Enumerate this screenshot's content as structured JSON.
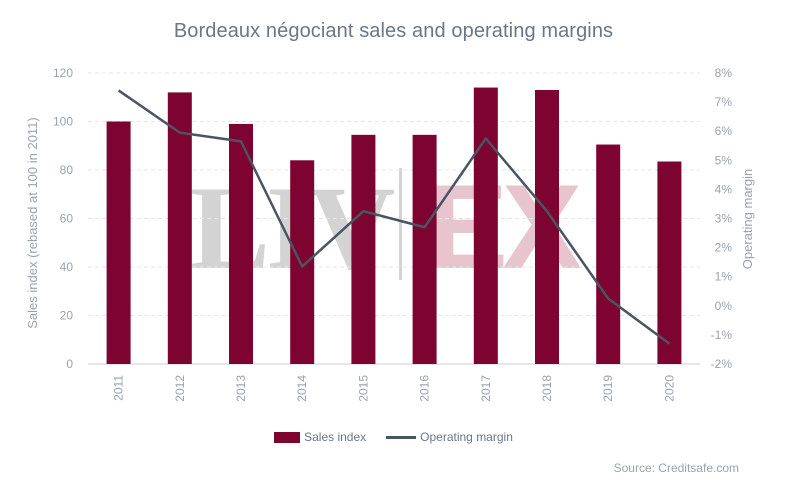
{
  "chart_data": {
    "type": "bar+line",
    "title": "Bordeaux négociant sales and operating margins",
    "categories": [
      "2011",
      "2012",
      "2013",
      "2014",
      "2015",
      "2016",
      "2017",
      "2018",
      "2019",
      "2020"
    ],
    "series": [
      {
        "name": "Sales index",
        "type": "bar",
        "axis": "left",
        "color": "#7d0330",
        "values": [
          100,
          112,
          99,
          84,
          94.5,
          94.5,
          114,
          113,
          90.5,
          83.5
        ]
      },
      {
        "name": "Operating margin",
        "type": "line",
        "axis": "right",
        "color": "#4a5561",
        "values": [
          7.4,
          5.95,
          5.65,
          1.35,
          3.25,
          2.7,
          5.75,
          3.25,
          0.25,
          -1.3
        ]
      }
    ],
    "ylabel_left": "Sales index (rebased at 100 in 2011)",
    "ylabel_right": "Operating margin",
    "ylim_left": [
      0,
      120
    ],
    "yticks_left": [
      "0",
      "20",
      "40",
      "60",
      "80",
      "100",
      "120"
    ],
    "ylim_right": [
      -2,
      8
    ],
    "yticks_right": [
      "-2%",
      "-1%",
      "0%",
      "1%",
      "2%",
      "3%",
      "4%",
      "5%",
      "6%",
      "7%",
      "8%"
    ],
    "grid": true,
    "legend_position": "bottom"
  },
  "source": "Source: Creditsafe.com",
  "watermark": {
    "left": "LIV",
    "right": "EX",
    "left_color": "#d3d3d3",
    "right_color": "#e8c5ce"
  }
}
